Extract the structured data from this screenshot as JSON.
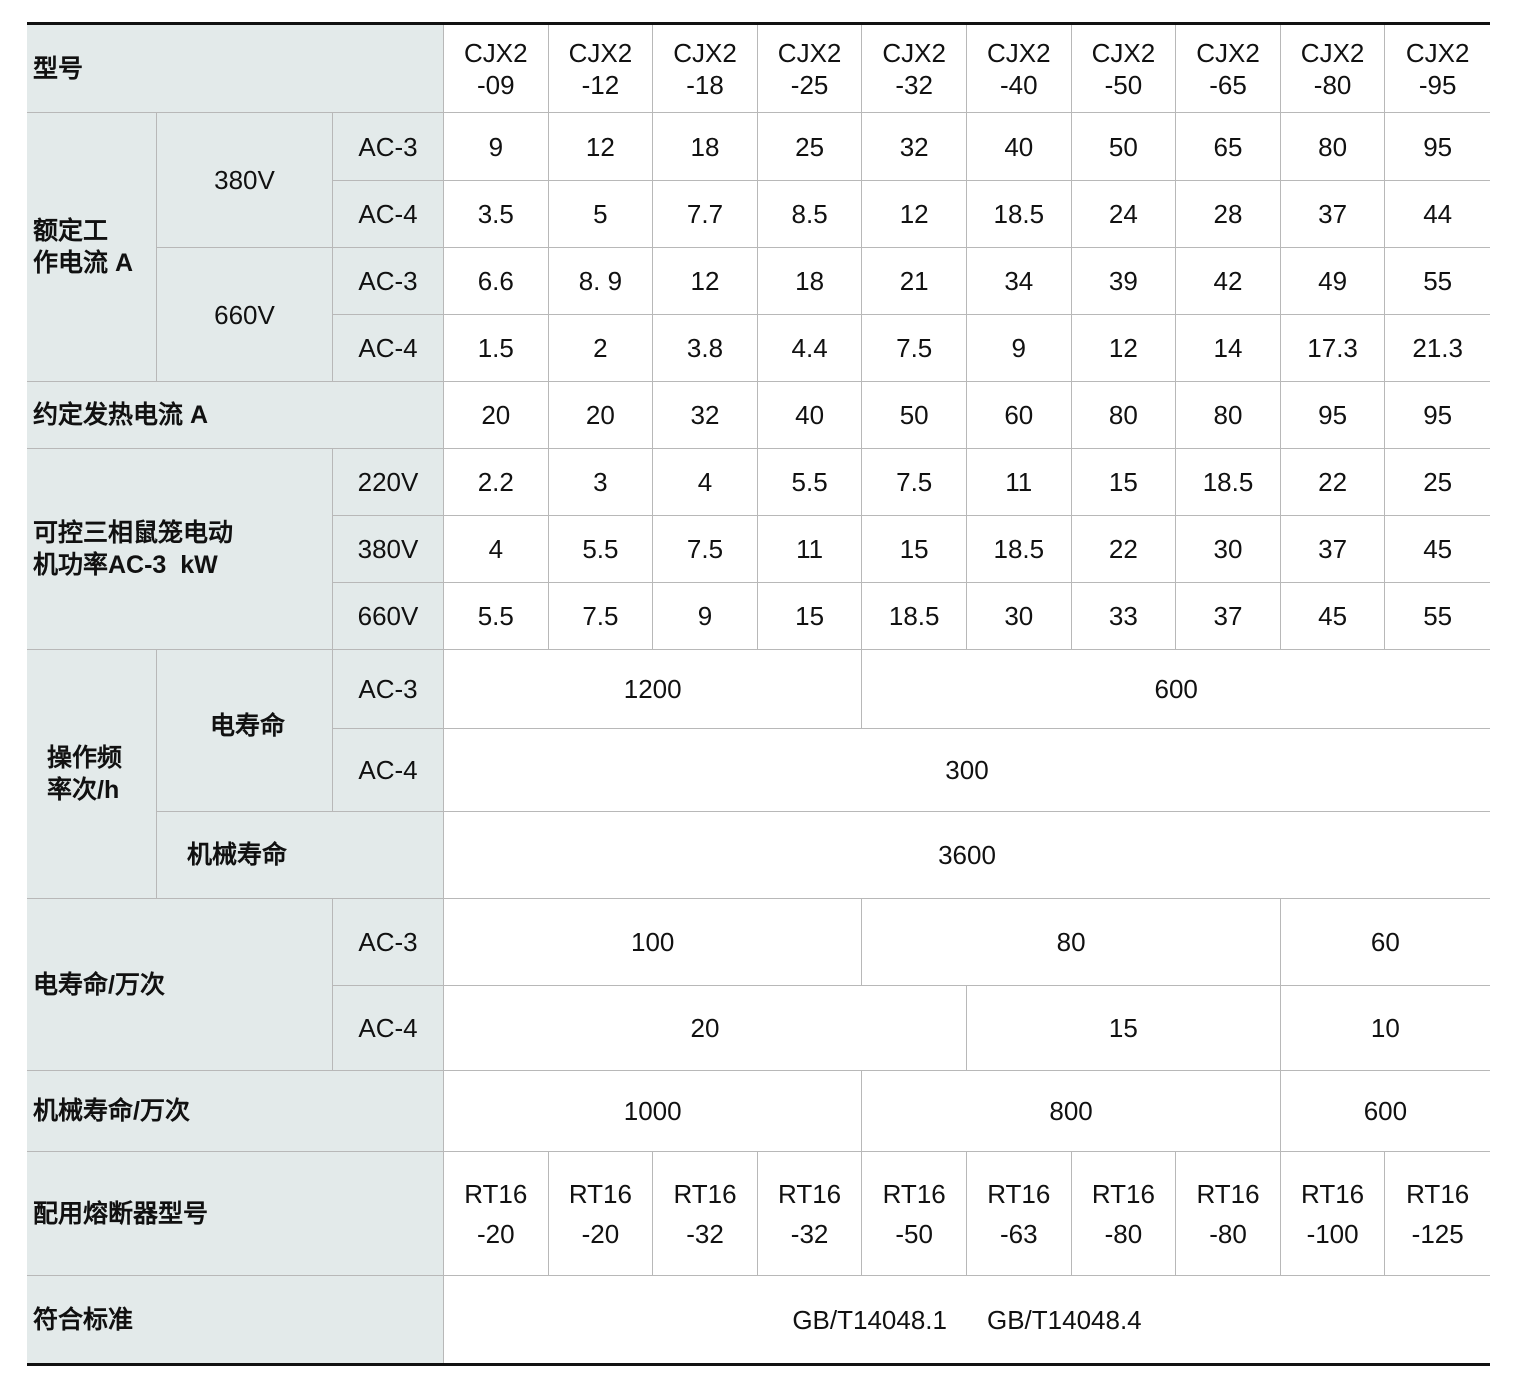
{
  "header": {
    "label": "型号",
    "models": [
      "CJX2\n-09",
      "CJX2\n-12",
      "CJX2\n-18",
      "CJX2\n-25",
      "CJX2\n-32",
      "CJX2\n-40",
      "CJX2\n-50",
      "CJX2\n-65",
      "CJX2\n-80",
      "CJX2\n-95"
    ]
  },
  "rated_current": {
    "label": "额定工\n作电流 A",
    "v380": "380V",
    "v660": "660V",
    "ac3": "AC-3",
    "ac4": "AC-4",
    "r380_ac3": [
      "9",
      "12",
      "18",
      "25",
      "32",
      "40",
      "50",
      "65",
      "80",
      "95"
    ],
    "r380_ac4": [
      "3.5",
      "5",
      "7.7",
      "8.5",
      "12",
      "18.5",
      "24",
      "28",
      "37",
      "44"
    ],
    "r660_ac3": [
      "6.6",
      "8. 9",
      "12",
      "18",
      "21",
      "34",
      "39",
      "42",
      "49",
      "55"
    ],
    "r660_ac4": [
      "1.5",
      "2",
      "3.8",
      "4.4",
      "7.5",
      "9",
      "12",
      "14",
      "17.3",
      "21.3"
    ]
  },
  "thermal_current": {
    "label": "约定发热电流 A",
    "values": [
      "20",
      "20",
      "32",
      "40",
      "50",
      "60",
      "80",
      "80",
      "95",
      "95"
    ]
  },
  "motor_power": {
    "label": "可控三相鼠笼电动\n机功率AC-3  kW",
    "v220": "220V",
    "v380": "380V",
    "v660": "660V",
    "r220": [
      "2.2",
      "3",
      "4",
      "5.5",
      "7.5",
      "11",
      "15",
      "18.5",
      "22",
      "25"
    ],
    "r380": [
      "4",
      "5.5",
      "7.5",
      "11",
      "15",
      "18.5",
      "22",
      "30",
      "37",
      "45"
    ],
    "r660": [
      "5.5",
      "7.5",
      "9",
      "15",
      "18.5",
      "30",
      "33",
      "37",
      "45",
      "55"
    ]
  },
  "operating_frequency": {
    "label": "操作频\n率次/h",
    "electrical": "电寿命",
    "mechanical": "机械寿命",
    "ac3": "AC-3",
    "ac4": "AC-4",
    "ac3_values": [
      "1200",
      "600"
    ],
    "ac4_value": "300",
    "mechanical_value": "3600"
  },
  "electrical_life": {
    "label": "电寿命/万次",
    "ac3": "AC-3",
    "ac4": "AC-4",
    "ac3_values": [
      "100",
      "80",
      "60"
    ],
    "ac4_values": [
      "20",
      "15",
      "10"
    ]
  },
  "mechanical_life": {
    "label": "机械寿命/万次",
    "values": [
      "1000",
      "800",
      "600"
    ]
  },
  "fuse": {
    "label": "配用熔断器型号",
    "values": [
      "RT16\n-20",
      "RT16\n-20",
      "RT16\n-32",
      "RT16\n-32",
      "RT16\n-50",
      "RT16\n-63",
      "RT16\n-80",
      "RT16\n-80",
      "RT16\n-100",
      "RT16\n-125"
    ]
  },
  "standard": {
    "label": "符合标准",
    "values": [
      "GB/T14048.1",
      "GB/T14048.4"
    ]
  },
  "colors": {
    "label_bg": "#e3eaea",
    "grid": "#b8b8b8",
    "rule": "#111111"
  }
}
